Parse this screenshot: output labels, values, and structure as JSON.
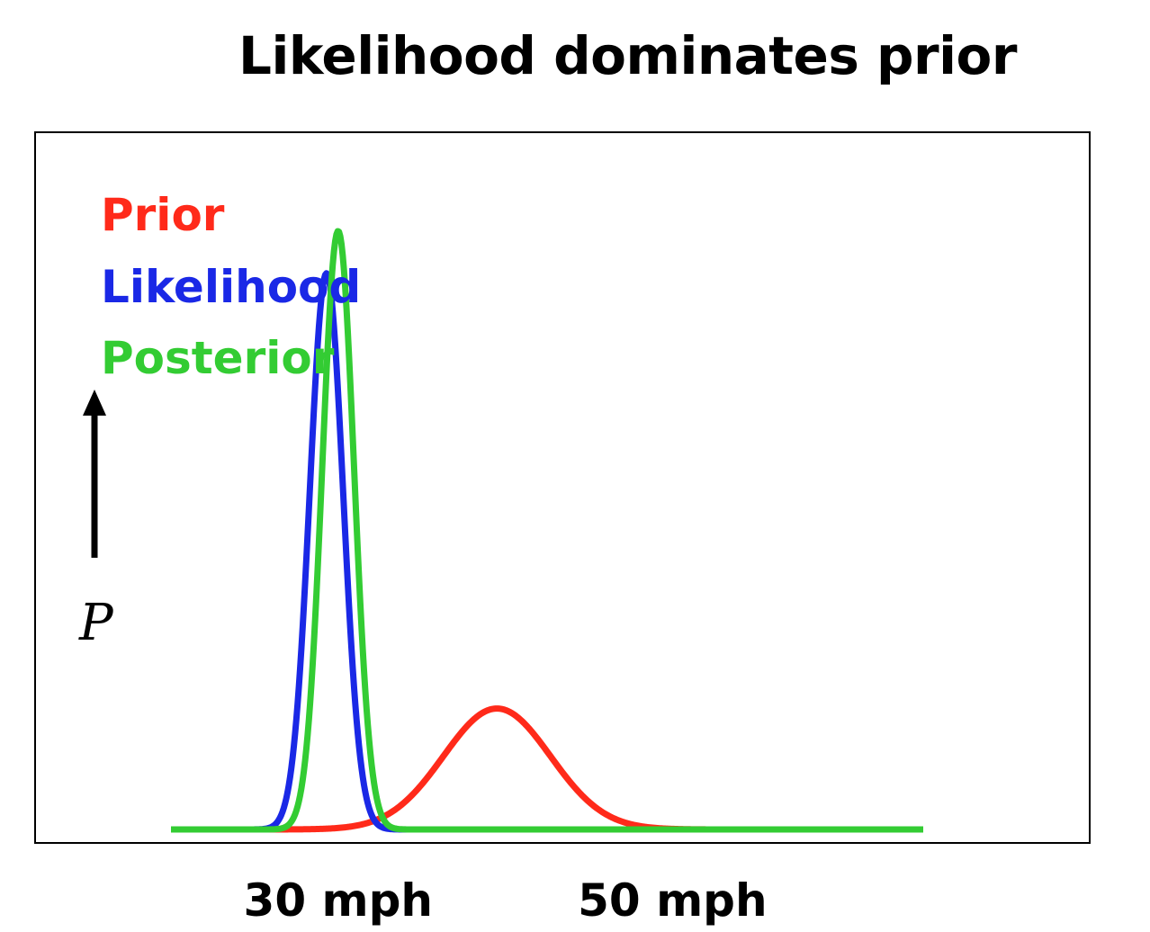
{
  "chart_data": {
    "type": "line",
    "title": "Likelihood dominates prior",
    "xlabel": "",
    "ylabel": "P",
    "x_tick_labels": [
      "30 mph",
      "50 mph"
    ],
    "x_tick_values": [
      30,
      50
    ],
    "xlim": [
      20,
      65
    ],
    "ylim": [
      0,
      1
    ],
    "grid": false,
    "legend_position": "top-left",
    "series": [
      {
        "name": "Prior",
        "color": "#ff2a1a",
        "mean": 39.5,
        "sd": 3.2,
        "peak": 0.2
      },
      {
        "name": "Likelihood",
        "color": "#1a28e6",
        "mean": 29.3,
        "sd": 1.0,
        "peak": 0.92
      },
      {
        "name": "Posterior",
        "color": "#33cc33",
        "mean": 30.0,
        "sd": 0.95,
        "peak": 0.99
      }
    ],
    "arrow_direction": "up"
  }
}
